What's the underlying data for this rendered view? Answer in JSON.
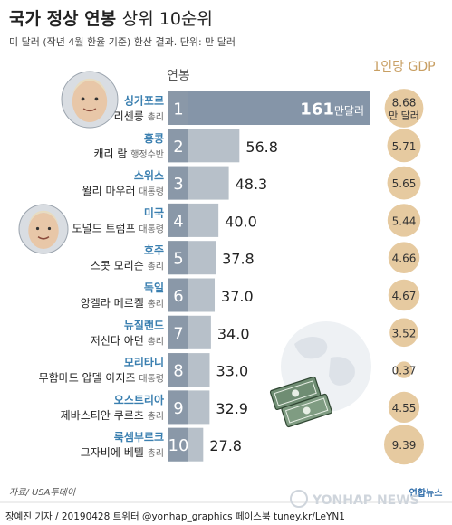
{
  "header": {
    "title_main": "국가 정상 연봉",
    "title_sub": "상위 10순위",
    "subtitle": "미 달러 (작년 4월 환율 기준) 환산 결과. 단위: 만 달러"
  },
  "column_labels": {
    "salary": "연봉",
    "gdp": "1인당 GDP"
  },
  "colors": {
    "bar": "#b7c0c9",
    "bar_top": "#8595a8",
    "rank_box": "#8a98a8",
    "country_text": "#3a7fb0",
    "gdp_circle": "#e6caa0",
    "gdp_text_header": "#c89f63"
  },
  "chart_data": {
    "type": "bar",
    "title": "국가 정상 연봉 상위 10순위",
    "unit": "만 달러",
    "ylim": [
      0,
      161
    ],
    "ranks": [
      "1",
      "2",
      "3",
      "4",
      "5",
      "6",
      "7",
      "8",
      "9",
      "10"
    ],
    "countries": [
      "싱가포르",
      "홍콩",
      "스위스",
      "미국",
      "호주",
      "독일",
      "뉴질랜드",
      "모리타니",
      "오스트리아",
      "룩셈부르크"
    ],
    "leaders": [
      "리셴룽",
      "캐리 람",
      "윌리 마우러",
      "도널드 트럼프",
      "스콧 모리슨",
      "앙겔라 메르켈",
      "저신다 아던",
      "무함마드 압델 아지즈",
      "제바스티안 쿠르츠",
      "그자비에 베텔"
    ],
    "titles": [
      "총리",
      "행정수반",
      "대통령",
      "대통령",
      "총리",
      "총리",
      "총리",
      "대통령",
      "총리",
      "총리"
    ],
    "values": [
      161,
      56.8,
      48.3,
      40.0,
      37.8,
      37.0,
      34.0,
      33.0,
      32.9,
      27.8
    ],
    "value_labels": [
      "161",
      "56.8",
      "48.3",
      "40.0",
      "37.8",
      "37.0",
      "34.0",
      "33.0",
      "32.9",
      "27.8"
    ],
    "top_value_unit": "만달러",
    "gdp_series": {
      "name": "1인당 GDP",
      "values": [
        8.68,
        5.71,
        5.65,
        5.44,
        4.66,
        4.67,
        3.52,
        0.37,
        4.55,
        9.39
      ],
      "labels": [
        "8.68",
        "5.71",
        "5.65",
        "5.44",
        "4.66",
        "4.67",
        "3.52",
        "0.37",
        "4.55",
        "9.39"
      ],
      "top_unit": "만 달러"
    }
  },
  "footer": {
    "source": "자료/ USA투데이",
    "credit": "장예진 기자 / 20190428 트위터 @yonhap_graphics  페이스북 tuney.kr/LeYN1",
    "logo_text": "YONHAP NEWS",
    "logo_kor": "연합뉴스"
  }
}
